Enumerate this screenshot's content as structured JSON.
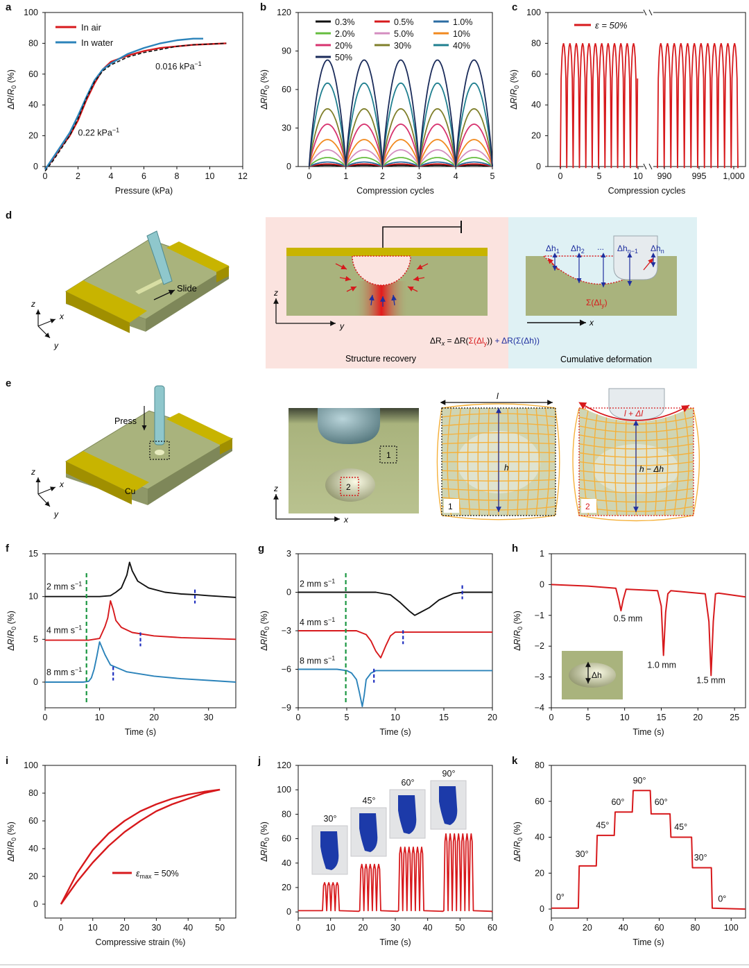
{
  "panel_letters": {
    "a": "a",
    "b": "b",
    "c": "c",
    "d": "d",
    "e": "e",
    "f": "f",
    "g": "g",
    "h": "h",
    "i": "i",
    "j": "j",
    "k": "k"
  },
  "colors": {
    "red": "#d7191c",
    "blue": "#2b83ba",
    "black": "#111111",
    "green": "#1a9641",
    "dashblue": "#1f2fbf",
    "cu": "#c8b400",
    "body": "#a9b37d",
    "pinkbg": "#fbe3df",
    "bluebg": "#dff1f4",
    "grid": "#f5b13b"
  },
  "panel_d": {
    "slide_label": "Slide",
    "axis_x": "x",
    "axis_y": "y",
    "axis_z": "z",
    "equation_parts": [
      "ΔR",
      "x",
      " = ΔR(",
      "Σ(Δl",
      "y",
      "))",
      " + ΔR(Σ(Δh))"
    ],
    "recovery_title": "Structure recovery",
    "cumulative_title": "Cumulative deformation",
    "dh_labels": [
      "Δh",
      "1",
      "Δh",
      "2",
      "...",
      "Δh",
      "n−1",
      "Δh",
      "n"
    ],
    "sum_label_parts": [
      "Σ(Δl",
      "y",
      ")"
    ]
  },
  "panel_e": {
    "press_label": "Press",
    "cu_label": "Cu",
    "axis_x": "x",
    "axis_y": "y",
    "axis_z": "z",
    "box1": "1",
    "box2": "2",
    "l_label": "l",
    "h_label": "h",
    "l_dl_label": "l + Δl",
    "h_dh_label": "h − Δh"
  },
  "panel_h_inset": {
    "label": "Δh"
  },
  "chart_data": [
    {
      "id": "a",
      "type": "line",
      "xlabel": "Pressure (kPa)",
      "ylabel_parts": [
        "ΔR/R",
        "0",
        " (%)"
      ],
      "xlim": [
        0,
        12
      ],
      "ylim": [
        0,
        100
      ],
      "xticks": [
        0,
        2,
        4,
        6,
        8,
        10,
        12
      ],
      "yticks": [
        0,
        20,
        40,
        60,
        80,
        100
      ],
      "series": [
        {
          "name": "In air",
          "color": "#d7191c",
          "x": [
            0,
            0.5,
            1,
            1.5,
            2,
            2.5,
            3,
            3.5,
            4,
            5,
            6,
            7,
            8,
            9,
            10,
            11
          ],
          "y": [
            -2,
            5,
            13,
            20,
            30,
            43,
            54,
            63,
            68,
            72,
            75,
            77,
            78,
            79,
            79.5,
            80
          ]
        },
        {
          "name": "In water",
          "color": "#2b83ba",
          "x": [
            0,
            0.5,
            1,
            1.5,
            2,
            2.5,
            3,
            3.5,
            4,
            5,
            6,
            7,
            8,
            9,
            9.6
          ],
          "y": [
            -2,
            6,
            14,
            22,
            33,
            45,
            56,
            63,
            67,
            73,
            77,
            80,
            82,
            83,
            83
          ]
        },
        {
          "name": "",
          "color": "#111111",
          "dash": true,
          "x": [
            0,
            0.5,
            1,
            1.5,
            2,
            2.5,
            3,
            3.5,
            4,
            5,
            6,
            7,
            8,
            9,
            10,
            11
          ],
          "y": [
            -3,
            4,
            12,
            20,
            31,
            44,
            55,
            62,
            66,
            71,
            74,
            76,
            78,
            79,
            79.5,
            80
          ]
        }
      ],
      "annotations": [
        {
          "text": "0.016 kPa",
          "sup": "−1",
          "x": 6.7,
          "y": 63
        },
        {
          "text": "0.22 kPa",
          "sup": "−1",
          "x": 2,
          "y": 20
        }
      ],
      "legend_position": "top-left"
    },
    {
      "id": "b",
      "type": "line",
      "xlabel": "Compression cycles",
      "ylabel_parts": [
        "ΔR/R",
        "0",
        " (%)"
      ],
      "xlim": [
        -0.3,
        5
      ],
      "ylim": [
        0,
        120
      ],
      "xticks": [
        0,
        1,
        2,
        3,
        4,
        5
      ],
      "yticks": [
        0,
        30,
        60,
        90,
        120
      ],
      "cycles": 5,
      "series": [
        {
          "name": "0.3%",
          "peak": 1,
          "color": "#111111"
        },
        {
          "name": "0.5%",
          "peak": 2,
          "color": "#d7191c"
        },
        {
          "name": "1.0%",
          "peak": 3.5,
          "color": "#2b6ca3"
        },
        {
          "name": "2.0%",
          "peak": 7,
          "color": "#66bd3f"
        },
        {
          "name": "5.0%",
          "peak": 13,
          "color": "#d48ec0"
        },
        {
          "name": "10%",
          "peak": 21,
          "color": "#f18a1f"
        },
        {
          "name": "20%",
          "peak": 33,
          "color": "#d7336f"
        },
        {
          "name": "30%",
          "peak": 45,
          "color": "#7f7f2a"
        },
        {
          "name": "40%",
          "peak": 65,
          "color": "#1f7f8f"
        },
        {
          "name": "50%",
          "peak": 83,
          "color": "#1a2b5a"
        }
      ],
      "legend_position": "top"
    },
    {
      "id": "c",
      "type": "line",
      "xlabel": "Compression cycles",
      "ylabel_parts": [
        "ΔR/R",
        "0",
        " (%)"
      ],
      "ylim": [
        0,
        100
      ],
      "yticks": [
        0,
        20,
        40,
        60,
        80,
        100
      ],
      "xticks_left": [
        0,
        5,
        10
      ],
      "xticks_right": [
        990,
        995,
        1000
      ],
      "xtick_labels_right": [
        "990",
        "995",
        "1,000"
      ],
      "series": [
        {
          "name": "ε = 50%",
          "color": "#d7191c",
          "peak": 80
        }
      ],
      "legend_position": "top-left"
    },
    {
      "id": "f",
      "type": "line",
      "xlabel": "Time (s)",
      "ylabel_parts": [
        "ΔR/R",
        "0",
        " (%)"
      ],
      "xlim": [
        0,
        35
      ],
      "ylim": [
        -3,
        15
      ],
      "xticks": [
        0,
        10,
        20,
        30
      ],
      "yticks": [
        0,
        5,
        10,
        15
      ],
      "series": [
        {
          "name": "2 mm s⁻¹",
          "color": "#111111",
          "x": [
            0,
            5,
            10,
            12,
            13,
            14,
            15,
            15.5,
            16,
            17,
            19,
            22,
            25,
            28,
            30,
            35
          ],
          "y": [
            10,
            10,
            10,
            10.1,
            10.5,
            11,
            12.5,
            14,
            13,
            11.8,
            11,
            10.5,
            10.3,
            10.2,
            10.1,
            9.9
          ]
        },
        {
          "name": "4 mm s⁻¹",
          "color": "#d7191c",
          "x": [
            0,
            5,
            8,
            10,
            10.5,
            11,
            11.5,
            12,
            12.5,
            13,
            14,
            16,
            20,
            25,
            30,
            35
          ],
          "y": [
            4.9,
            4.9,
            4.9,
            5.1,
            5.8,
            6.5,
            7.5,
            9.5,
            8.5,
            7.2,
            6.4,
            5.8,
            5.4,
            5.2,
            5.1,
            5
          ]
        },
        {
          "name": "8 mm s⁻¹",
          "color": "#2b83ba",
          "x": [
            0,
            5,
            7,
            8,
            8.5,
            9,
            9.5,
            10,
            11,
            12,
            15,
            20,
            25,
            30,
            35
          ],
          "y": [
            0,
            0,
            0,
            0.1,
            0.5,
            1.5,
            3,
            4.7,
            3.2,
            2,
            1.2,
            0.7,
            0.4,
            0.2,
            0
          ]
        }
      ],
      "series_labels": [
        "2 mm s",
        "4 mm s",
        "8 mm s"
      ],
      "label_sup": "−1",
      "markers": [
        {
          "type": "green-dash",
          "x": 7.6
        },
        {
          "type": "blue-dash",
          "x": 27.5,
          "y": 10
        },
        {
          "type": "blue-dash",
          "x": 17.5,
          "y": 5
        },
        {
          "type": "blue-dash",
          "x": 12.5,
          "y": 1
        }
      ]
    },
    {
      "id": "g",
      "type": "line",
      "xlabel": "Time (s)",
      "ylabel_parts": [
        "ΔR/R",
        "0",
        " (%)"
      ],
      "xlim": [
        0,
        20
      ],
      "ylim": [
        -9,
        3
      ],
      "xticks": [
        0,
        5,
        10,
        15,
        20
      ],
      "yticks": [
        -9,
        -6,
        -3,
        0,
        3
      ],
      "series": [
        {
          "name": "2 mm s⁻¹",
          "color": "#111111",
          "x": [
            0,
            4,
            6,
            8,
            9.5,
            10.5,
            11.5,
            12,
            12.5,
            13.5,
            14.5,
            16,
            17,
            20
          ],
          "y": [
            0,
            0,
            0,
            0,
            -0.2,
            -0.8,
            -1.5,
            -1.8,
            -1.6,
            -1.2,
            -0.6,
            -0.1,
            0,
            0
          ]
        },
        {
          "name": "4 mm s⁻¹",
          "color": "#d7191c",
          "x": [
            0,
            4,
            5,
            6,
            7,
            7.5,
            8,
            8.5,
            9,
            9.5,
            10,
            11,
            13,
            16,
            20
          ],
          "y": [
            -3,
            -3,
            -3,
            -3,
            -3.3,
            -3.8,
            -4.6,
            -5.1,
            -4.2,
            -3.4,
            -3.1,
            -3.1,
            -3.1,
            -3.1,
            -3.1
          ]
        },
        {
          "name": "8 mm s⁻¹",
          "color": "#2b83ba",
          "x": [
            0,
            4,
            5,
            5.5,
            6,
            6.3,
            6.6,
            6.8,
            7,
            7.5,
            8,
            10,
            15,
            20
          ],
          "y": [
            -6,
            -6,
            -6.1,
            -6.3,
            -6.8,
            -7.8,
            -8.9,
            -8,
            -6.8,
            -6.3,
            -6.1,
            -6.1,
            -6.1,
            -6.1
          ]
        }
      ],
      "series_labels": [
        "2 mm s",
        "4 mm s",
        "8 mm s"
      ],
      "label_sup": "−1",
      "markers": [
        {
          "type": "green-dash",
          "x": 4.9
        },
        {
          "type": "blue-dash",
          "x": 16.9,
          "y": 0
        },
        {
          "type": "blue-dash",
          "x": 10.8,
          "y": -3.5
        },
        {
          "type": "blue-dash",
          "x": 7.8,
          "y": -6.5
        }
      ]
    },
    {
      "id": "h",
      "type": "line",
      "xlabel": "Time (s)",
      "ylabel_parts": [
        "ΔR/R",
        "0",
        " (%)"
      ],
      "xlim": [
        0,
        26.5
      ],
      "ylim": [
        -4,
        1
      ],
      "xticks": [
        0,
        5,
        10,
        15,
        20,
        25
      ],
      "yticks": [
        -4,
        -3,
        -2,
        -1,
        0,
        1
      ],
      "series": [
        {
          "name": "",
          "color": "#d7191c",
          "x": [
            0,
            5,
            8.8,
            9.2,
            9.5,
            9.8,
            10.2,
            14.5,
            15,
            15.3,
            15.6,
            15.9,
            16.3,
            21,
            21.5,
            21.8,
            22.1,
            22.4,
            22.8,
            26.5
          ],
          "y": [
            0,
            -0.05,
            -0.12,
            -0.5,
            -0.85,
            -0.5,
            -0.15,
            -0.2,
            -0.7,
            -2.3,
            -0.9,
            -0.3,
            -0.2,
            -0.3,
            -1.2,
            -2.95,
            -1.2,
            -0.3,
            -0.28,
            -0.4
          ]
        }
      ],
      "annotations": [
        {
          "text": "0.5 mm",
          "x": 8.5,
          "y": -1.2
        },
        {
          "text": "1.0 mm",
          "x": 13.1,
          "y": -2.7
        },
        {
          "text": "1.5 mm",
          "x": 19.8,
          "y": -3.2
        }
      ]
    },
    {
      "id": "i",
      "type": "line",
      "xlabel": "Compressive strain (%)",
      "ylabel_parts": [
        "ΔR/R",
        "0",
        " (%)"
      ],
      "xlim": [
        -5,
        55
      ],
      "ylim": [
        -10,
        100
      ],
      "xticks": [
        0,
        10,
        20,
        30,
        40,
        50
      ],
      "yticks": [
        0,
        20,
        40,
        60,
        80,
        100
      ],
      "series": [
        {
          "name": "ε",
          "sub": "max",
          "suffix": " = 50%",
          "color": "#d7191c",
          "x": [
            0,
            5,
            10,
            15,
            20,
            25,
            30,
            35,
            40,
            45,
            50
          ],
          "y": [
            0,
            16,
            30,
            42,
            52,
            60,
            67,
            72,
            76,
            80,
            82.5
          ]
        },
        {
          "name": "",
          "color": "#d7191c",
          "x": [
            50,
            45,
            40,
            35,
            30,
            25,
            20,
            15,
            10,
            5,
            0
          ],
          "y": [
            82.5,
            81,
            79,
            76,
            72,
            67,
            60,
            51,
            39,
            22,
            0
          ]
        }
      ],
      "legend_position": "center"
    },
    {
      "id": "j",
      "type": "line",
      "xlabel": "Time (s)",
      "ylabel_parts": [
        "ΔR/R",
        "0",
        " (%)"
      ],
      "xlim": [
        0,
        60
      ],
      "ylim": [
        -5,
        120
      ],
      "xticks": [
        0,
        10,
        20,
        30,
        40,
        50,
        60
      ],
      "yticks": [
        0,
        20,
        40,
        60,
        80,
        100,
        120
      ],
      "groups": [
        {
          "label": "30°",
          "start": 7.5,
          "count": 4,
          "peak": 24
        },
        {
          "label": "45°",
          "start": 19,
          "count": 5,
          "peak": 39
        },
        {
          "label": "60°",
          "start": 31,
          "count": 6,
          "peak": 53
        },
        {
          "label": "90°",
          "start": 45,
          "count": 7,
          "peak": 64
        }
      ],
      "color": "#d7191c"
    },
    {
      "id": "k",
      "type": "line",
      "xlabel": "Time (s)",
      "ylabel_parts": [
        "ΔR/R",
        "0",
        " (%)"
      ],
      "xlim": [
        0,
        108
      ],
      "ylim": [
        -5,
        80
      ],
      "xticks": [
        0,
        20,
        40,
        60,
        80,
        100
      ],
      "yticks": [
        0,
        20,
        40,
        60,
        80
      ],
      "series": [
        {
          "name": "",
          "color": "#d7191c",
          "x": [
            0,
            15,
            15.5,
            25,
            25.5,
            35,
            35.5,
            45,
            45.5,
            55,
            55.5,
            66,
            66.5,
            78,
            78.5,
            89,
            89.5,
            108
          ],
          "y": [
            0.5,
            0.5,
            24,
            24,
            41,
            41,
            54,
            54,
            66,
            66,
            53,
            53,
            40,
            40,
            23,
            23,
            0.5,
            0
          ]
        }
      ],
      "annotations": [
        {
          "text": "0°",
          "x": 5,
          "y": 5
        },
        {
          "text": "30°",
          "x": 17,
          "y": 29
        },
        {
          "text": "45°",
          "x": 28.5,
          "y": 45
        },
        {
          "text": "60°",
          "x": 37,
          "y": 58
        },
        {
          "text": "90°",
          "x": 49,
          "y": 70
        },
        {
          "text": "60°",
          "x": 61,
          "y": 58
        },
        {
          "text": "45°",
          "x": 72,
          "y": 44
        },
        {
          "text": "30°",
          "x": 83,
          "y": 27
        },
        {
          "text": "0°",
          "x": 95,
          "y": 4
        }
      ]
    }
  ]
}
